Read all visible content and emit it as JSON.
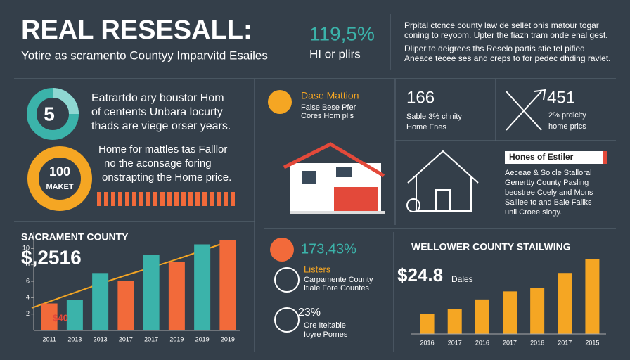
{
  "header": {
    "title": "REAL RESESALL:",
    "subtitle": "Yotire as scramento Countyy Imparvitd Esailes",
    "stat": "119,5%",
    "stat_label": "HI or plirs",
    "note1": [
      "Prpital ctcnce county law de sellet ohis matour togar",
      "coning to reyoom. Upter the fiazh tram onde enal gest."
    ],
    "note2": [
      "Dliper to deigrees ths Reselo partis stie tel pified",
      "Aneace tecee ses and creps to for pedec dhding ravlet."
    ]
  },
  "rings": [
    {
      "label": "5",
      "text": [
        "Eatrartdo ary boustor Hom",
        "of centents Unbara locurty",
        "thads are viege orser years."
      ]
    },
    {
      "label": "100",
      "sublabel": "MAKET",
      "text": [
        "Home for mattles tas Falllor",
        "no the aconsage foring",
        "onstrapting the Home price."
      ]
    }
  ],
  "feature": {
    "title": "Dase Mattion",
    "text": [
      "Faise Bese Pfer",
      "Cores Hom plis"
    ]
  },
  "stats": [
    {
      "value": "166",
      "line1": "Sable 3% chnity",
      "line2": "Home Fnes"
    },
    {
      "value": "451",
      "line1": "2% prdicity",
      "line2": "home prics"
    }
  ],
  "estiler": {
    "title": "Hones of Estiler",
    "text": [
      "Aeceae & Solcle Stalloral",
      "Genertty County Pasling",
      "beostree Coely and Mons",
      "Salllee to and Bale Faliks",
      "unil Croee slogy."
    ]
  },
  "listers": {
    "stat": "173,43%",
    "title": "Listers",
    "text": [
      "Carpamente County",
      "Itiale Fore Countes"
    ],
    "stat2": "23%",
    "text2": [
      "Ore Iteitable",
      "Ioyre Pornes"
    ]
  },
  "left_chart": {
    "type": "bar",
    "title": "SACRAMENT COUNTY",
    "headline": "$,2516",
    "bar_label": "$40",
    "categories": [
      "2011",
      "2013",
      "2013",
      "2017",
      "2017",
      "2019",
      "2019",
      "2019"
    ],
    "values": [
      3.3,
      3.7,
      7,
      6,
      9.2,
      8.4,
      10.5,
      11
    ],
    "colors": [
      "#f26a3a",
      "#3bb3aa",
      "#3bb3aa",
      "#f26a3a",
      "#3bb3aa",
      "#f26a3a",
      "#3bb3aa",
      "#f26a3a"
    ],
    "ylim": [
      0,
      12
    ],
    "yticks": [
      2,
      4,
      6,
      8,
      10
    ]
  },
  "right_chart": {
    "type": "bar",
    "title": "WELLOWER COUNTY STAILWING",
    "headline": "$24.8",
    "headline_label": "Dales",
    "categories": [
      "2016",
      "2017",
      "2016",
      "2017",
      "2016",
      "2017",
      "2015"
    ],
    "values": [
      27,
      34,
      47,
      58,
      63,
      83,
      102
    ],
    "color": "#f5a623",
    "ylim": [
      0,
      110
    ]
  }
}
